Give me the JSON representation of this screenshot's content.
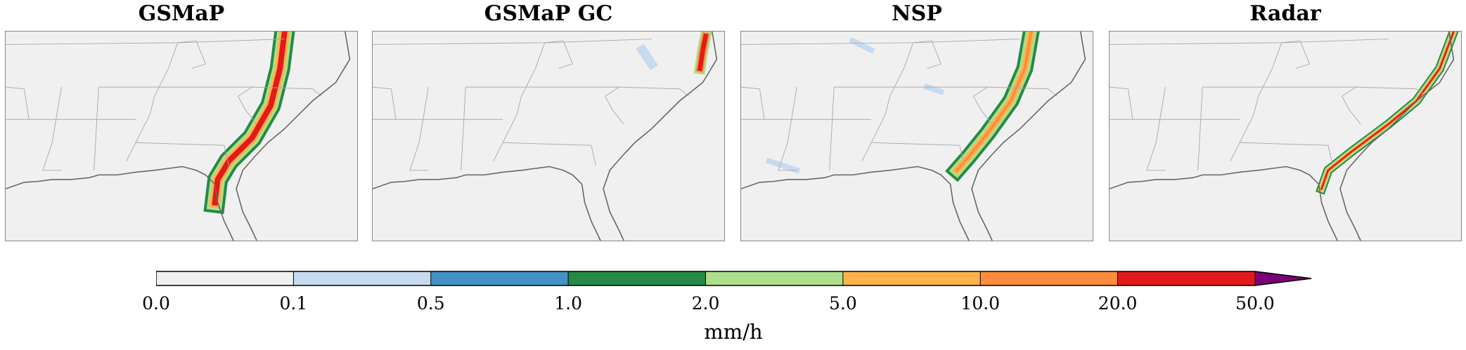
{
  "panels": [
    {
      "title": "GSMaP",
      "rain": "band"
    },
    {
      "title": "GSMaP GC",
      "rain": "northeast"
    },
    {
      "title": "NSP",
      "rain": "band-scattered"
    },
    {
      "title": "Radar",
      "rain": "narrow-band"
    }
  ],
  "colorbar": {
    "label": "mm/h",
    "ticks": [
      "0.0",
      "0.1",
      "0.5",
      "1.0",
      "2.0",
      "5.0",
      "10.0",
      "20.0",
      "50.0"
    ],
    "colors": [
      "#f0f0f0",
      "#c6dbef",
      "#4292c6",
      "#238b45",
      "#addf8b",
      "#feb24c",
      "#fd8d3c",
      "#e31a1c"
    ],
    "extend_color": "#7a0177",
    "extend": "max"
  }
}
